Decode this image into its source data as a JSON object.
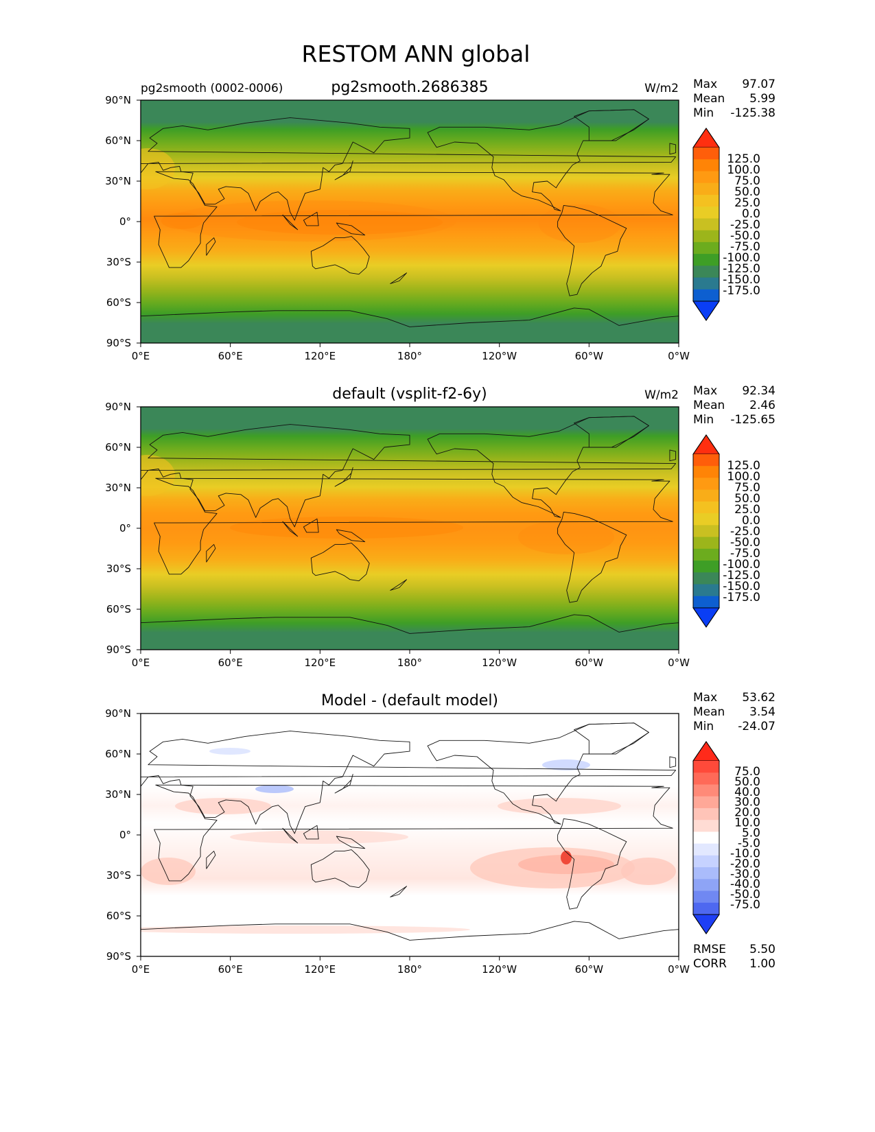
{
  "figure_title": "RESTOM ANN global",
  "axes": {
    "lon_ticks": [
      "0°E",
      "60°E",
      "120°E",
      "180°",
      "120°W",
      "60°W",
      "0°W"
    ],
    "lat_ticks": [
      "90°N",
      "60°N",
      "30°N",
      "0°",
      "30°S",
      "60°S",
      "90°S"
    ]
  },
  "chart_data": [
    {
      "type": "heatmap",
      "left_title": "pg2smooth (0002-0006)",
      "title": "pg2smooth.2686385",
      "units": "W/m2",
      "stats": {
        "max_label": "Max",
        "max": "97.07",
        "mean_label": "Mean",
        "mean": "5.99",
        "min_label": "Min",
        "min": "-125.38"
      },
      "colorbar": {
        "levels": [
          "125.0",
          "100.0",
          "75.0",
          "50.0",
          "25.0",
          "0.0",
          "-25.0",
          "-50.0",
          "-75.0",
          "-100.0",
          "-125.0",
          "-150.0",
          "-175.0"
        ],
        "colors": [
          "#ff2f10",
          "#ff5e0a",
          "#ff8406",
          "#ff9a12",
          "#f9ad18",
          "#f4c120",
          "#e9cd25",
          "#c9c021",
          "#9cb51b",
          "#6cac1e",
          "#3e9e26",
          "#3b8758",
          "#2a7a8f",
          "#0d5fd0",
          "#0a3ef5"
        ]
      },
      "xlim": [
        0,
        360
      ],
      "ylim": [
        -90,
        90
      ]
    },
    {
      "type": "heatmap",
      "left_title": "",
      "title": "default (vsplit-f2-6y)",
      "units": "W/m2",
      "stats": {
        "max_label": "Max",
        "max": "92.34",
        "mean_label": "Mean",
        "mean": "2.46",
        "min_label": "Min",
        "min": "-125.65"
      },
      "colorbar": {
        "levels": [
          "125.0",
          "100.0",
          "75.0",
          "50.0",
          "25.0",
          "0.0",
          "-25.0",
          "-50.0",
          "-75.0",
          "-100.0",
          "-125.0",
          "-150.0",
          "-175.0"
        ],
        "colors": [
          "#ff2f10",
          "#ff5e0a",
          "#ff8406",
          "#ff9a12",
          "#f9ad18",
          "#f4c120",
          "#e9cd25",
          "#c9c021",
          "#9cb51b",
          "#6cac1e",
          "#3e9e26",
          "#3b8758",
          "#2a7a8f",
          "#0d5fd0",
          "#0a3ef5"
        ]
      },
      "xlim": [
        0,
        360
      ],
      "ylim": [
        -90,
        90
      ]
    },
    {
      "type": "heatmap",
      "left_title": "",
      "title": "Model - (default model)",
      "units": "",
      "stats": {
        "max_label": "Max",
        "max": "53.62",
        "mean_label": "Mean",
        "mean": "3.54",
        "min_label": "Min",
        "min": "-24.07"
      },
      "colorbar": {
        "levels": [
          "75.0",
          "50.0",
          "40.0",
          "30.0",
          "20.0",
          "10.0",
          "5.0",
          "-5.0",
          "-10.0",
          "-20.0",
          "-30.0",
          "-40.0",
          "-50.0",
          "-75.0"
        ],
        "colors": [
          "#ff2a1a",
          "#ff4a3a",
          "#ff6a58",
          "#ff8a78",
          "#ffa898",
          "#ffc4b8",
          "#ffdcd4",
          "#ffffff",
          "#e2e8ff",
          "#c6d2ff",
          "#aabcfb",
          "#8ea4f6",
          "#7088f2",
          "#4e68f0",
          "#1e3ff5"
        ]
      },
      "rmse_label": "RMSE",
      "rmse": "5.50",
      "corr_label": "CORR",
      "corr": "1.00",
      "xlim": [
        0,
        360
      ],
      "ylim": [
        -90,
        90
      ]
    }
  ]
}
